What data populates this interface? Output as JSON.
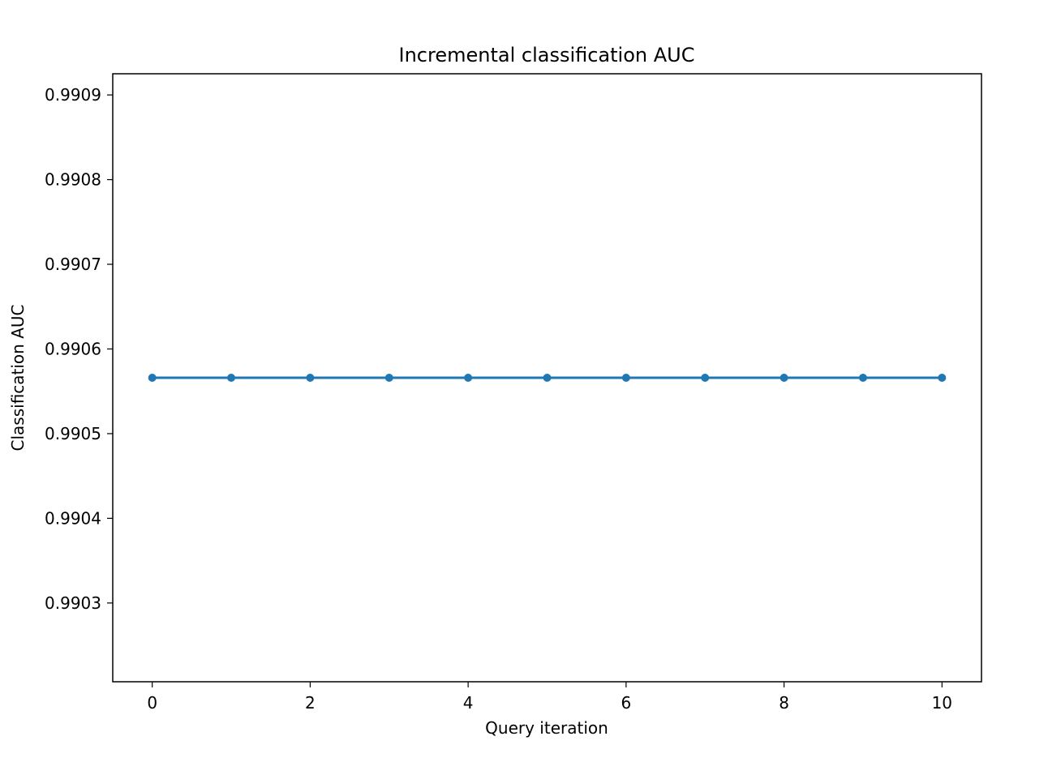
{
  "chart_data": {
    "type": "line",
    "title": "Incremental classification AUC",
    "xlabel": "Query iteration",
    "ylabel": "Classification AUC",
    "x": [
      0,
      1,
      2,
      3,
      4,
      5,
      6,
      7,
      8,
      9,
      10
    ],
    "series": [
      {
        "values": [
          0.990566,
          0.990566,
          0.990566,
          0.990566,
          0.990566,
          0.990566,
          0.990566,
          0.990566,
          0.990566,
          0.990566,
          0.990566
        ],
        "color": "#1f77b4",
        "marker": "circle"
      }
    ],
    "xlim": [
      -0.5,
      10.5
    ],
    "ylim": [
      0.990207,
      0.990925
    ],
    "xticks": [
      0,
      2,
      4,
      6,
      8,
      10
    ],
    "xtick_labels": [
      "0",
      "2",
      "4",
      "6",
      "8",
      "10"
    ],
    "yticks": [
      0.9903,
      0.9904,
      0.9905,
      0.9906,
      0.9907,
      0.9908,
      0.9909
    ],
    "ytick_labels": [
      "0.9903",
      "0.9904",
      "0.9905",
      "0.9906",
      "0.9907",
      "0.9908",
      "0.9909"
    ],
    "grid": false,
    "legend": false
  }
}
